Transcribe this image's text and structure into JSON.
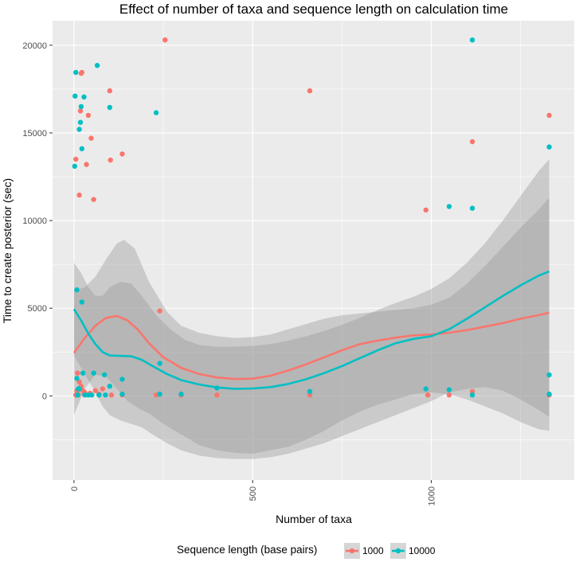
{
  "chart_data": {
    "type": "scatter",
    "title": "Effect of number of taxa and sequence length on calculation time",
    "xlabel": "Number of taxa",
    "ylabel": "Time to create posterior (sec)",
    "xlim": [
      -60,
      1400
    ],
    "ylim": [
      -4800,
      21400
    ],
    "x_ticks": [
      0,
      500,
      1000
    ],
    "y_ticks": [
      0,
      5000,
      10000,
      15000,
      20000
    ],
    "grid": true,
    "legend": {
      "title": "Sequence length (base pairs)",
      "position": "bottom",
      "entries": [
        "1000",
        "10000"
      ]
    },
    "colors": {
      "1000": "#F8766D",
      "10000": "#00BFC4",
      "panel": "#EBEBEB",
      "ribbon": "#999999"
    },
    "series": [
      {
        "name": "1000",
        "points": [
          [
            5,
            13500
          ],
          [
            8,
            300
          ],
          [
            10,
            150
          ],
          [
            12,
            50
          ],
          [
            15,
            11450
          ],
          [
            18,
            16250
          ],
          [
            20,
            18400
          ],
          [
            22,
            18450
          ],
          [
            25,
            300
          ],
          [
            28,
            100
          ],
          [
            35,
            13200
          ],
          [
            40,
            16000
          ],
          [
            48,
            14700
          ],
          [
            55,
            11200
          ],
          [
            60,
            300
          ],
          [
            70,
            100
          ],
          [
            80,
            400
          ],
          [
            100,
            17400
          ],
          [
            102,
            13450
          ],
          [
            105,
            50
          ],
          [
            135,
            13800
          ],
          [
            135,
            50
          ],
          [
            240,
            4850
          ],
          [
            255,
            20300
          ],
          [
            400,
            50
          ],
          [
            660,
            17400
          ],
          [
            660,
            50
          ],
          [
            985,
            10600
          ],
          [
            990,
            50
          ],
          [
            1050,
            50
          ],
          [
            1115,
            14500
          ],
          [
            1115,
            250
          ],
          [
            1330,
            16000
          ],
          [
            1330,
            50
          ],
          [
            15,
            800
          ],
          [
            20,
            550
          ],
          [
            30,
            200
          ],
          [
            45,
            150
          ],
          [
            10,
            1300
          ],
          [
            5,
            50
          ],
          [
            230,
            50
          ],
          [
            300,
            50
          ]
        ],
        "smooth": [
          [
            0,
            2450
          ],
          [
            30,
            3300
          ],
          [
            60,
            4000
          ],
          [
            90,
            4450
          ],
          [
            120,
            4560
          ],
          [
            150,
            4300
          ],
          [
            180,
            3750
          ],
          [
            210,
            3000
          ],
          [
            250,
            2200
          ],
          [
            300,
            1600
          ],
          [
            350,
            1250
          ],
          [
            400,
            1050
          ],
          [
            450,
            960
          ],
          [
            500,
            980
          ],
          [
            550,
            1150
          ],
          [
            600,
            1450
          ],
          [
            650,
            1800
          ],
          [
            700,
            2200
          ],
          [
            750,
            2600
          ],
          [
            800,
            2950
          ],
          [
            850,
            3150
          ],
          [
            900,
            3320
          ],
          [
            950,
            3450
          ],
          [
            1000,
            3500
          ],
          [
            1050,
            3600
          ],
          [
            1100,
            3750
          ],
          [
            1150,
            3950
          ],
          [
            1200,
            4150
          ],
          [
            1250,
            4400
          ],
          [
            1300,
            4600
          ],
          [
            1330,
            4750
          ]
        ],
        "ci_upper": [
          [
            0,
            6000
          ],
          [
            30,
            6200
          ],
          [
            60,
            6800
          ],
          [
            90,
            7800
          ],
          [
            120,
            8700
          ],
          [
            140,
            8900
          ],
          [
            170,
            8400
          ],
          [
            210,
            6500
          ],
          [
            260,
            4800
          ],
          [
            300,
            4000
          ],
          [
            350,
            3600
          ],
          [
            400,
            3400
          ],
          [
            450,
            3300
          ],
          [
            500,
            3350
          ],
          [
            550,
            3500
          ],
          [
            600,
            3800
          ],
          [
            650,
            4100
          ],
          [
            700,
            4400
          ],
          [
            750,
            4600
          ],
          [
            800,
            4700
          ],
          [
            850,
            4800
          ],
          [
            900,
            4900
          ],
          [
            950,
            5000
          ],
          [
            1000,
            5200
          ],
          [
            1050,
            5600
          ],
          [
            1100,
            6400
          ],
          [
            1150,
            7400
          ],
          [
            1200,
            8500
          ],
          [
            1250,
            9600
          ],
          [
            1300,
            10600
          ],
          [
            1330,
            11300
          ]
        ],
        "ci_lower": [
          [
            0,
            -1100
          ],
          [
            30,
            400
          ],
          [
            60,
            1200
          ],
          [
            90,
            1100
          ],
          [
            120,
            400
          ],
          [
            150,
            -300
          ],
          [
            180,
            -700
          ],
          [
            210,
            -1000
          ],
          [
            250,
            -1600
          ],
          [
            300,
            -2200
          ],
          [
            350,
            -2800
          ],
          [
            400,
            -3100
          ],
          [
            450,
            -3250
          ],
          [
            500,
            -3300
          ],
          [
            550,
            -3100
          ],
          [
            600,
            -2900
          ],
          [
            650,
            -2500
          ],
          [
            700,
            -2000
          ],
          [
            750,
            -1400
          ],
          [
            800,
            -900
          ],
          [
            850,
            -500
          ],
          [
            900,
            -200
          ],
          [
            950,
            100
          ],
          [
            1000,
            200
          ],
          [
            1050,
            100
          ],
          [
            1100,
            -200
          ],
          [
            1150,
            -600
          ],
          [
            1200,
            -1000
          ],
          [
            1250,
            -1500
          ],
          [
            1300,
            -1900
          ],
          [
            1330,
            -2000
          ]
        ]
      },
      {
        "name": "10000",
        "points": [
          [
            2,
            13100
          ],
          [
            3,
            17100
          ],
          [
            5,
            18450
          ],
          [
            8,
            6050
          ],
          [
            10,
            50
          ],
          [
            12,
            400
          ],
          [
            15,
            15200
          ],
          [
            18,
            15600
          ],
          [
            20,
            16500
          ],
          [
            22,
            14100
          ],
          [
            22,
            5350
          ],
          [
            25,
            1300
          ],
          [
            28,
            17050
          ],
          [
            30,
            50
          ],
          [
            40,
            50
          ],
          [
            50,
            50
          ],
          [
            55,
            1300
          ],
          [
            65,
            18850
          ],
          [
            70,
            50
          ],
          [
            85,
            1200
          ],
          [
            88,
            50
          ],
          [
            100,
            16450
          ],
          [
            100,
            550
          ],
          [
            135,
            950
          ],
          [
            135,
            100
          ],
          [
            230,
            16150
          ],
          [
            240,
            1850
          ],
          [
            240,
            100
          ],
          [
            300,
            100
          ],
          [
            400,
            450
          ],
          [
            660,
            250
          ],
          [
            985,
            400
          ],
          [
            1050,
            10800
          ],
          [
            1050,
            350
          ],
          [
            1115,
            20300
          ],
          [
            1115,
            10700
          ],
          [
            1115,
            50
          ],
          [
            1330,
            14200
          ],
          [
            1330,
            1200
          ],
          [
            1330,
            100
          ],
          [
            8,
            1000
          ],
          [
            15,
            400
          ]
        ],
        "smooth": [
          [
            0,
            4950
          ],
          [
            20,
            4300
          ],
          [
            40,
            3550
          ],
          [
            60,
            2950
          ],
          [
            80,
            2500
          ],
          [
            100,
            2300
          ],
          [
            130,
            2280
          ],
          [
            160,
            2260
          ],
          [
            190,
            2050
          ],
          [
            220,
            1700
          ],
          [
            260,
            1250
          ],
          [
            300,
            900
          ],
          [
            350,
            650
          ],
          [
            400,
            480
          ],
          [
            450,
            400
          ],
          [
            500,
            420
          ],
          [
            550,
            500
          ],
          [
            600,
            680
          ],
          [
            650,
            950
          ],
          [
            700,
            1300
          ],
          [
            750,
            1700
          ],
          [
            800,
            2150
          ],
          [
            850,
            2600
          ],
          [
            900,
            3000
          ],
          [
            950,
            3250
          ],
          [
            1000,
            3400
          ],
          [
            1050,
            3800
          ],
          [
            1100,
            4400
          ],
          [
            1150,
            5050
          ],
          [
            1200,
            5700
          ],
          [
            1250,
            6300
          ],
          [
            1300,
            6850
          ],
          [
            1330,
            7100
          ]
        ],
        "ci_upper": [
          [
            0,
            7600
          ],
          [
            20,
            7000
          ],
          [
            40,
            6200
          ],
          [
            60,
            5700
          ],
          [
            80,
            5700
          ],
          [
            100,
            6200
          ],
          [
            130,
            6500
          ],
          [
            160,
            6400
          ],
          [
            190,
            5700
          ],
          [
            230,
            4600
          ],
          [
            270,
            3800
          ],
          [
            310,
            3200
          ],
          [
            350,
            2900
          ],
          [
            400,
            2800
          ],
          [
            450,
            2800
          ],
          [
            500,
            2850
          ],
          [
            550,
            2950
          ],
          [
            600,
            3150
          ],
          [
            650,
            3400
          ],
          [
            700,
            3700
          ],
          [
            750,
            4050
          ],
          [
            800,
            4450
          ],
          [
            850,
            4900
          ],
          [
            900,
            5300
          ],
          [
            950,
            5650
          ],
          [
            1000,
            6100
          ],
          [
            1050,
            6700
          ],
          [
            1100,
            7600
          ],
          [
            1150,
            8700
          ],
          [
            1200,
            10000
          ],
          [
            1250,
            11400
          ],
          [
            1300,
            12800
          ],
          [
            1330,
            13500
          ]
        ],
        "ci_lower": [
          [
            0,
            2300
          ],
          [
            20,
            1600
          ],
          [
            40,
            900
          ],
          [
            60,
            200
          ],
          [
            80,
            -600
          ],
          [
            100,
            -1100
          ],
          [
            130,
            -1400
          ],
          [
            160,
            -1600
          ],
          [
            190,
            -1800
          ],
          [
            220,
            -2200
          ],
          [
            260,
            -2700
          ],
          [
            300,
            -3100
          ],
          [
            350,
            -3400
          ],
          [
            400,
            -3550
          ],
          [
            450,
            -3600
          ],
          [
            500,
            -3600
          ],
          [
            550,
            -3500
          ],
          [
            600,
            -3300
          ],
          [
            650,
            -3000
          ],
          [
            700,
            -2700
          ],
          [
            750,
            -2300
          ],
          [
            800,
            -1900
          ],
          [
            850,
            -1500
          ],
          [
            900,
            -1100
          ],
          [
            950,
            -700
          ],
          [
            1000,
            -300
          ],
          [
            1050,
            200
          ],
          [
            1100,
            400
          ],
          [
            1150,
            500
          ],
          [
            1200,
            300
          ],
          [
            1250,
            -200
          ],
          [
            1300,
            -800
          ],
          [
            1330,
            -1200
          ]
        ]
      }
    ]
  }
}
